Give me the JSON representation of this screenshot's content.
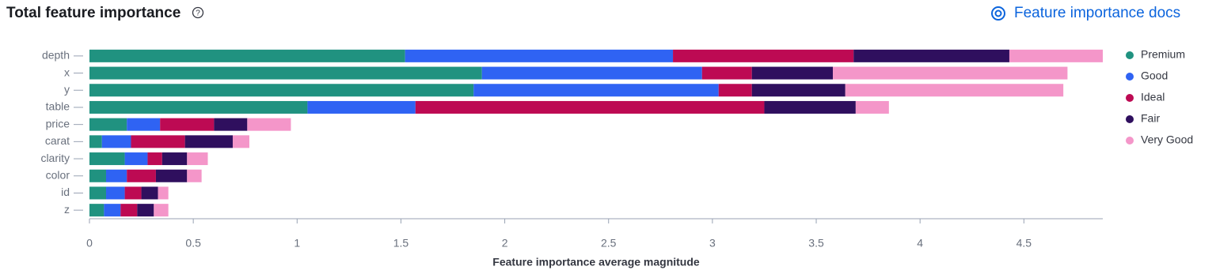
{
  "chart_data": {
    "type": "bar",
    "orientation": "horizontal",
    "stacked": true,
    "title": "Total feature importance",
    "xlabel": "Feature importance average magnitude",
    "categories": [
      "depth",
      "x",
      "y",
      "table",
      "price",
      "carat",
      "clarity",
      "color",
      "id",
      "z"
    ],
    "series": [
      {
        "name": "Premium",
        "color": "#209280",
        "values": [
          1.52,
          1.89,
          1.85,
          1.05,
          0.18,
          0.06,
          0.17,
          0.08,
          0.08,
          0.07
        ]
      },
      {
        "name": "Good",
        "color": "#2f63f3",
        "values": [
          1.29,
          1.06,
          1.18,
          0.52,
          0.16,
          0.14,
          0.11,
          0.1,
          0.09,
          0.08
        ]
      },
      {
        "name": "Ideal",
        "color": "#bd0a53",
        "values": [
          0.87,
          0.24,
          0.16,
          1.68,
          0.26,
          0.26,
          0.07,
          0.14,
          0.08,
          0.08
        ]
      },
      {
        "name": "Fair",
        "color": "#2f0f5e",
        "values": [
          0.75,
          0.39,
          0.45,
          0.44,
          0.16,
          0.23,
          0.12,
          0.15,
          0.08,
          0.08
        ]
      },
      {
        "name": "Very Good",
        "color": "#f496c9",
        "values": [
          0.45,
          1.13,
          1.05,
          0.16,
          0.21,
          0.08,
          0.1,
          0.07,
          0.05,
          0.07
        ]
      }
    ],
    "xlim": [
      0,
      4.88
    ],
    "xticks": [
      0,
      0.5,
      1,
      1.5,
      2,
      2.5,
      3,
      3.5,
      4,
      4.5
    ],
    "legend": "right"
  },
  "docs_link": "Feature importance docs"
}
